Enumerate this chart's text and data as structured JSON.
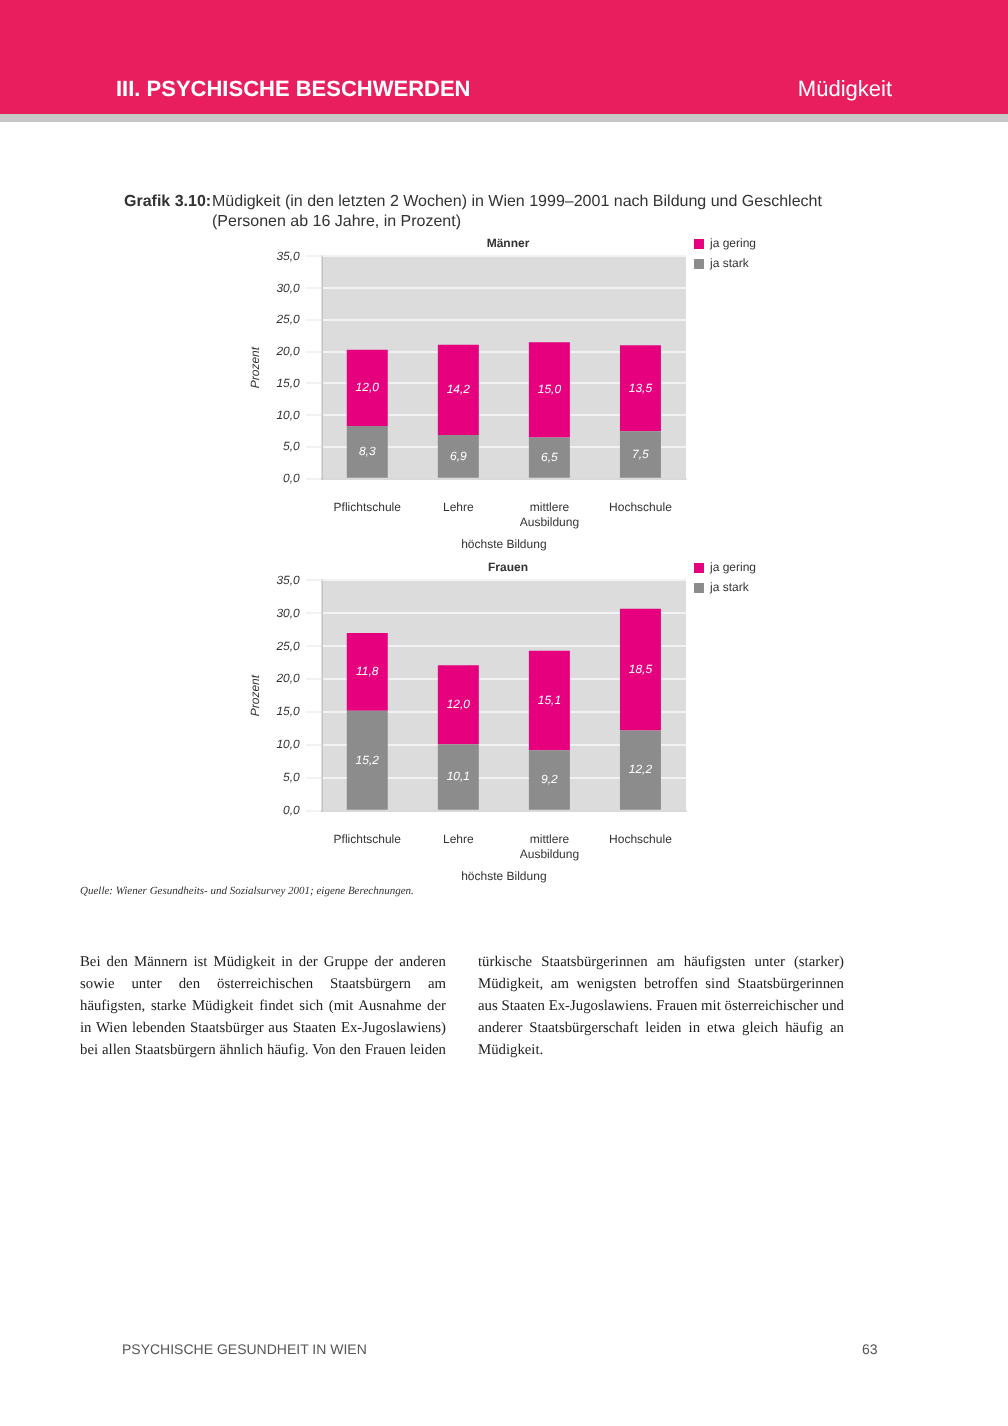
{
  "chart_data": [
    {
      "type": "bar",
      "title": "Männer",
      "xlabel": "höchste Bildung",
      "ylabel": "Prozent",
      "annotations": [
        "III. PSYCHISCHE BESCHWERDEN",
        "Müdigkeit",
        "Grafik 3.10:",
        "Müdigkeit (in den letzten 2 Wochen) in Wien 1999–2001 nach Bildung und Geschlecht (Personen ab 16 Jahre, in Prozent)"
      ],
      "categories": [
        "Pflichtschule",
        "Lehre",
        "mittlere Ausbildung",
        "Hochschule"
      ],
      "stacked": true,
      "series": [
        {
          "name": "ja stark",
          "color": "#8c8c8c",
          "values": [
            8.3,
            6.9,
            6.5,
            7.5
          ],
          "value_labels": [
            "8,3",
            "6,9",
            "6,5",
            "7,5"
          ]
        },
        {
          "name": "ja gering",
          "color": "#e6007e",
          "values": [
            12.0,
            14.2,
            15.0,
            13.5
          ],
          "value_labels": [
            "12,0",
            "14,2",
            "15,0",
            "13,5"
          ]
        }
      ],
      "ylim": [
        0,
        35
      ],
      "yticks": [
        {
          "value": 0,
          "label": "0,0"
        },
        {
          "value": 5,
          "label": "5,0"
        },
        {
          "value": 10,
          "label": "10,0"
        },
        {
          "value": 15,
          "label": "15,0"
        },
        {
          "value": 20,
          "label": "20,0"
        },
        {
          "value": 25,
          "label": "25,0"
        },
        {
          "value": 30,
          "label": "30,0"
        },
        {
          "value": 35,
          "label": "35,0"
        }
      ],
      "grid": "y",
      "legend": "right"
    },
    {
      "type": "bar",
      "title": "Frauen",
      "xlabel": "höchste Bildung",
      "ylabel": "Prozent",
      "annotations": [
        "Quelle: Wiener Gesundheits- und Sozialsurvey 2001; eigene Berechnungen.",
        "Bei den Männern ist Müdigkeit in der Gruppe der anderen sowie unter den österreichischen Staatsbürgern am häufigsten, starke Müdigkeit findet sich (mit Ausnahme der in Wien lebenden Staatsbürger aus Staaten Ex-Jugoslawiens) bei allen Staatsbürgern ähnlich häufig. Von den Frauen leiden türkische Staatsbürgerinnen am häufigsten unter (starker) Müdigkeit, am wenigsten betroffen sind Staatsbürgerinnen aus Staaten Ex-Jugoslawiens. Frauen mit österreichischer und anderer Staatsbürgerschaft leiden in etwa gleich häufig an Müdigkeit.",
        "PSYCHISCHE GESUNDHEIT IN WIEN",
        "63"
      ],
      "categories": [
        "Pflichtschule",
        "Lehre",
        "mittlere Ausbildung",
        "Hochschule"
      ],
      "stacked": true,
      "series": [
        {
          "name": "ja stark",
          "color": "#8c8c8c",
          "values": [
            15.2,
            10.1,
            9.2,
            12.2
          ],
          "value_labels": [
            "15,2",
            "10,1",
            "9,2",
            "12,2"
          ]
        },
        {
          "name": "ja gering",
          "color": "#e6007e",
          "values": [
            11.8,
            12.0,
            15.1,
            18.5
          ],
          "value_labels": [
            "11,8",
            "12,0",
            "15,1",
            "18,5"
          ]
        }
      ],
      "ylim": [
        0,
        35
      ],
      "yticks": [
        {
          "value": 0,
          "label": "0,0"
        },
        {
          "value": 5,
          "label": "5,0"
        },
        {
          "value": 10,
          "label": "10,0"
        },
        {
          "value": 15,
          "label": "15,0"
        },
        {
          "value": 20,
          "label": "20,0"
        },
        {
          "value": 25,
          "label": "25,0"
        },
        {
          "value": 30,
          "label": "30,0"
        },
        {
          "value": 35,
          "label": "35,0"
        }
      ],
      "grid": "y",
      "legend": "right"
    }
  ]
}
